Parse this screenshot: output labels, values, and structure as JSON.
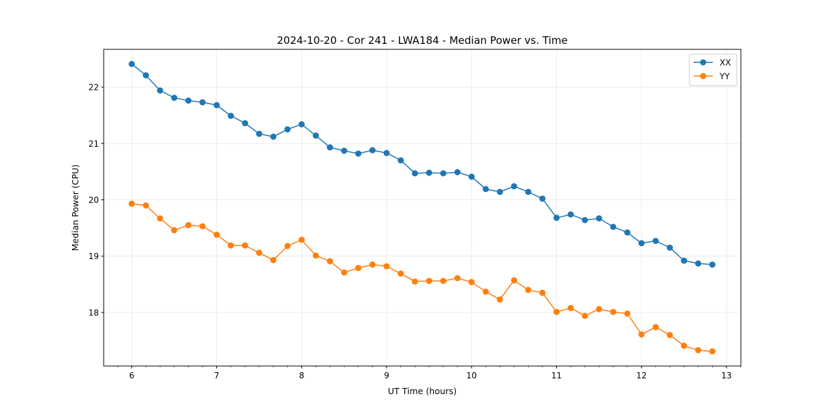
{
  "chart_data": {
    "type": "line",
    "title": "2024-10-20 - Cor 241 - LWA184 - Median Power vs. Time",
    "xlabel": "UT Time (hours)",
    "ylabel": "Median Power (CPU)",
    "xlim": [
      5.67,
      13.17
    ],
    "ylim": [
      17.05,
      22.67
    ],
    "xticks": [
      6,
      7,
      8,
      9,
      10,
      11,
      12,
      13
    ],
    "yticks": [
      18,
      19,
      20,
      21,
      22
    ],
    "grid": true,
    "legend_position": "top-right",
    "x_start": 6.0,
    "x_step_hours": 0.16667,
    "series": [
      {
        "name": "XX",
        "color": "#1f77b4",
        "values": [
          22.41,
          22.21,
          21.94,
          21.81,
          21.76,
          21.73,
          21.68,
          21.49,
          21.36,
          21.17,
          21.12,
          21.25,
          21.34,
          21.14,
          20.93,
          20.87,
          20.82,
          20.88,
          20.83,
          20.7,
          20.47,
          20.48,
          20.47,
          20.49,
          20.41,
          20.19,
          20.14,
          20.24,
          20.14,
          20.02,
          19.68,
          19.74,
          19.64,
          19.67,
          19.52,
          19.42,
          19.23,
          19.27,
          19.15,
          18.92,
          18.87,
          18.85
        ]
      },
      {
        "name": "YY",
        "color": "#ff7f0e",
        "values": [
          19.93,
          19.9,
          19.67,
          19.46,
          19.55,
          19.53,
          19.38,
          19.19,
          19.19,
          19.06,
          18.93,
          19.18,
          19.29,
          19.01,
          18.91,
          18.71,
          18.79,
          18.85,
          18.82,
          18.69,
          18.55,
          18.56,
          18.56,
          18.61,
          18.54,
          18.37,
          18.23,
          18.57,
          18.4,
          18.35,
          18.01,
          18.08,
          17.94,
          18.06,
          18.01,
          17.98,
          17.61,
          17.74,
          17.6,
          17.41,
          17.33,
          17.31
        ]
      }
    ]
  }
}
